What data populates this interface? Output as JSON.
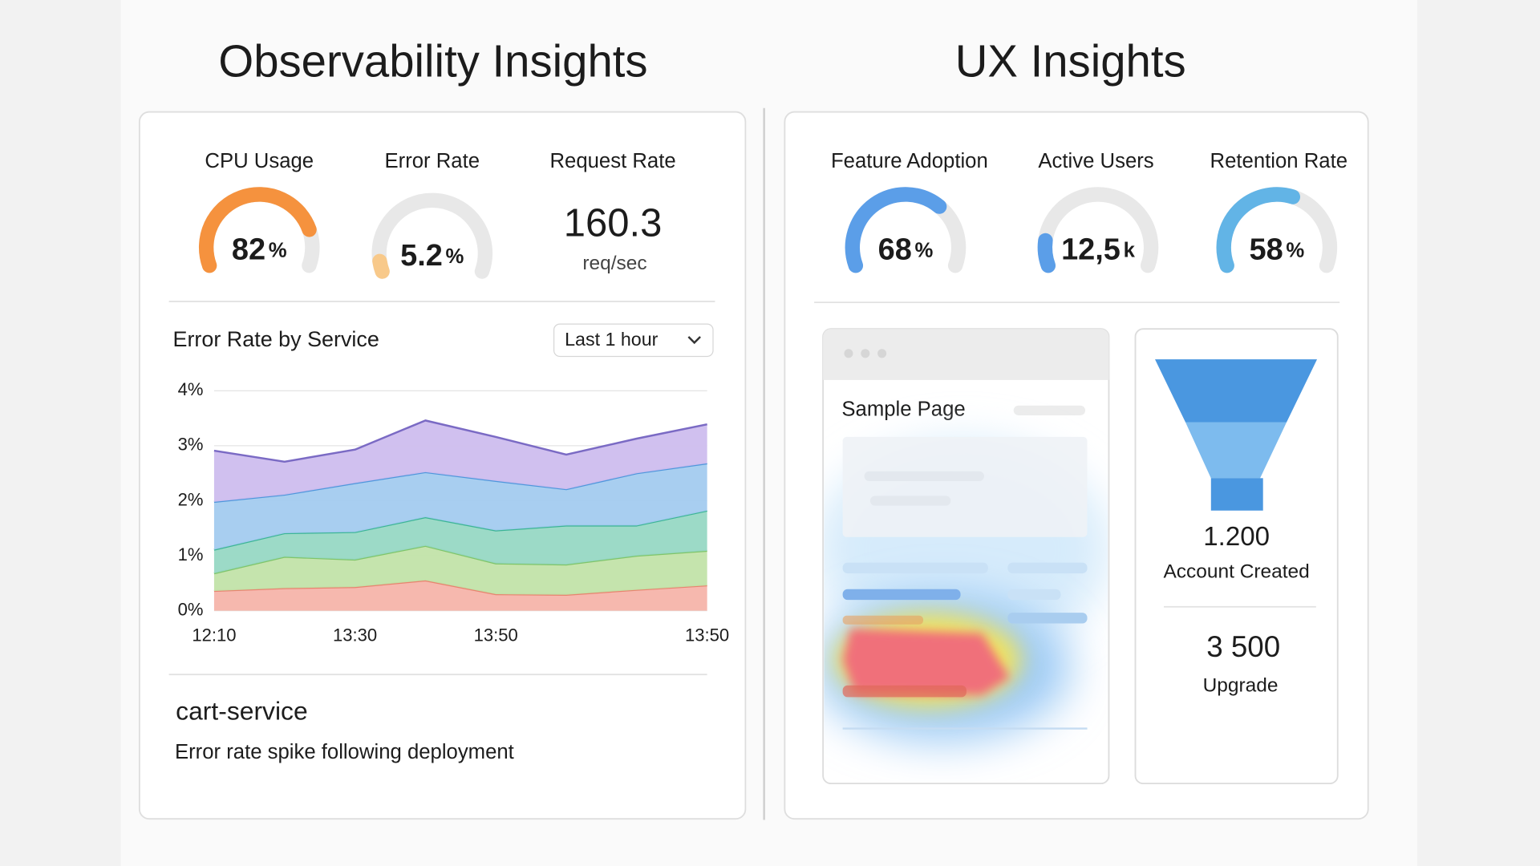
{
  "observability": {
    "title": "Observability Insights",
    "metrics": [
      {
        "label": "CPU Usage",
        "value": 82,
        "unit": "%",
        "color": "#f5923e"
      },
      {
        "label": "Error Rate",
        "value": 5.2,
        "unit": "%",
        "color": "#f8c98a"
      },
      {
        "label": "Request Rate",
        "value": "160.3",
        "unit": "req/sec"
      }
    ],
    "chart": {
      "type": "area",
      "stacked": true,
      "title": "Error Rate by Service",
      "range_selector": "Last 1 hour",
      "categories": [
        "12:10",
        null,
        "13:30",
        null,
        "13:50",
        null,
        null,
        "13:50"
      ],
      "series": [
        {
          "color": "#f6b4aa",
          "line_color": "#e8846f",
          "values": [
            0.36,
            0.41,
            0.43,
            0.55,
            0.3,
            0.29,
            0.38,
            0.46
          ]
        },
        {
          "color": "#c2e3a9",
          "line_color": "#7fc56a",
          "values": [
            0.32,
            0.57,
            0.5,
            0.63,
            0.56,
            0.55,
            0.62,
            0.63
          ]
        },
        {
          "color": "#97d8c4",
          "line_color": "#3cb596",
          "values": [
            0.43,
            0.43,
            0.5,
            0.52,
            0.6,
            0.71,
            0.55,
            0.73
          ]
        },
        {
          "color": "#a3cbef",
          "line_color": "#4f97dc",
          "values": [
            0.87,
            0.7,
            0.89,
            0.82,
            0.9,
            0.66,
            0.95,
            0.86
          ]
        },
        {
          "color": "#cdbdee",
          "line_color": "#7a6ac4",
          "values": [
            0.93,
            0.6,
            0.61,
            0.94,
            0.8,
            0.63,
            0.63,
            0.71
          ]
        }
      ],
      "ylim": [
        0,
        4
      ],
      "yticks": [
        {
          "value": 0,
          "label": "0%"
        },
        {
          "value": 1,
          "label": "1%"
        },
        {
          "value": 2,
          "label": "2%"
        },
        {
          "value": 3,
          "label": "3%"
        },
        {
          "value": 4,
          "label": "4%"
        }
      ],
      "grid": true
    },
    "alert": {
      "service": "cart-service",
      "message": "Error rate spike following deployment"
    }
  },
  "ux": {
    "title": "UX Insights",
    "metrics": [
      {
        "label": "Feature Adoption",
        "value": 68,
        "unit": "%",
        "color": "#5b9ee8"
      },
      {
        "label": "Active Users",
        "value": {
          "value": 12.5,
          "label": "12,5"
        },
        "unit": "k",
        "color": "#5b9ee8"
      },
      {
        "label": "Retention Rate",
        "value": 58,
        "unit": "%",
        "color": "#62b4e6"
      }
    ],
    "heatmap": {
      "title": "Sample Page"
    },
    "funnel": [
      {
        "value": "1.200",
        "label": "Account Created"
      },
      {
        "value": "3 500",
        "label": "Upgrade"
      }
    ]
  }
}
